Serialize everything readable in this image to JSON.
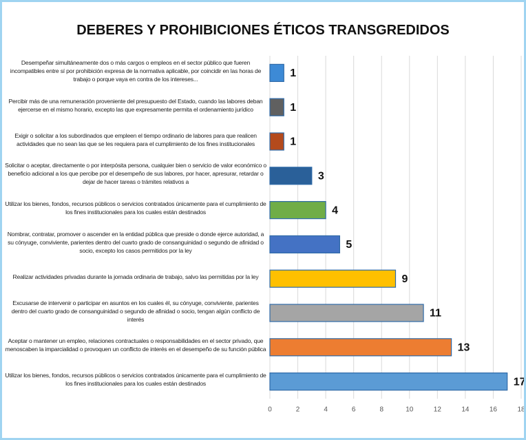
{
  "chart_data": {
    "type": "barh",
    "title": "DEBERES  Y PROHIBICIONES  ÉTICOS TRANSGREDIDOS",
    "categories": [
      "Desempeñar simultáneamente dos o más cargos o empleos en el sector público que fueren incompatibles entre sí por prohibición expresa de la normativa aplicable, por coincidir en las horas de trabajo o porque vaya en contra de los intereses...",
      "Percibir más de una remuneración proveniente del presupuesto del Estado, cuando las labores deban ejercerse en el mismo horario, excepto las que expresamente permita el ordenamiento jurídico",
      "Exigir o solicitar a los subordinados que empleen el tiempo ordinario de labores para que realicen actividades que no sean las que se les requiera para el cumplimiento de los fines institucionales",
      "Solicitar o aceptar, directamente o por interpósita persona, cualquier bien o servicio de valor económico o beneficio adicional a los que percibe por el desempeño de sus labores, por hacer, apresurar, retardar o dejar de hacer tareas o trámites relativos a",
      "Utilizar los bienes, fondos, recursos públicos o servicios contratados únicamente para el cumplimiento de los fines institucionales para los cuales están destinados",
      "Nombrar, contratar, promover o ascender en la entidad pública que preside o donde ejerce autoridad, a su cónyuge, conviviente, parientes dentro del cuarto grado de consanguinidad o segundo de afinidad o socio, excepto los casos permitidos por la ley",
      "Realizar actividades privadas durante la jornada ordinaria de trabajo, salvo las permitidas por la ley",
      "Excusarse de intervenir o participar en asuntos en los cuales él, su cónyuge, conviviente, parientes dentro del cuarto grado de consanguinidad o segundo de afinidad o socio, tengan algún conflicto de interés",
      "Aceptar o mantener un empleo, relaciones contractuales o responsabilidades en el sector privado, que menoscaben la imparcialidad o provoquen un conflicto de interés en el desempeño de su función pública",
      "Utilizar los bienes, fondos, recursos públicos o servicios contratados únicamente para el cumplimiento de los fines institucionales para los cuales están destinados"
    ],
    "values": [
      1,
      1,
      1,
      3,
      4,
      5,
      9,
      11,
      13,
      17
    ],
    "colors": [
      "#3d8ad6",
      "#606060",
      "#b44a1c",
      "#2a6099",
      "#70ad47",
      "#4472c4",
      "#ffc000",
      "#a5a5a5",
      "#ed7d31",
      "#5b9bd5"
    ],
    "xlim": [
      0,
      18
    ],
    "xticks": [
      0,
      2,
      4,
      6,
      8,
      10,
      12,
      14,
      16,
      18
    ],
    "grid": true
  }
}
